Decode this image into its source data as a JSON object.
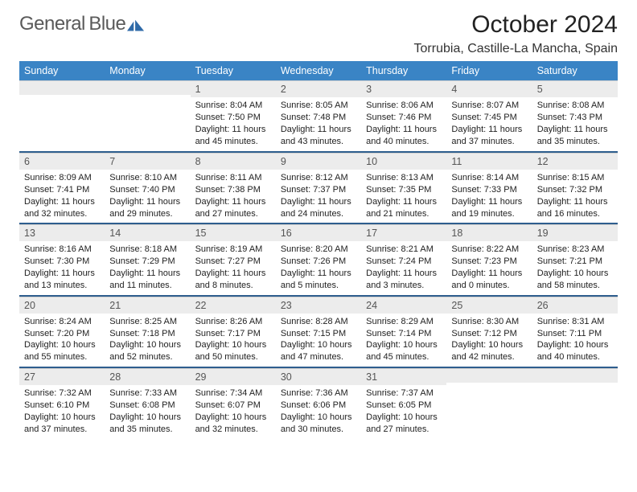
{
  "logo": {
    "text1": "General",
    "text2": "Blue"
  },
  "title": "October 2024",
  "location": "Torrubia, Castille-La Mancha, Spain",
  "headers": [
    "Sunday",
    "Monday",
    "Tuesday",
    "Wednesday",
    "Thursday",
    "Friday",
    "Saturday"
  ],
  "colors": {
    "header_bg": "#3a84c5",
    "header_fg": "#ffffff",
    "daynum_bg": "#ececec",
    "row_sep": "#2e5e8e",
    "logo_gray": "#6a6a6a",
    "logo_blue": "#3a7fc4"
  },
  "weeks": [
    [
      {
        "n": ""
      },
      {
        "n": ""
      },
      {
        "n": "1",
        "sr": "Sunrise: 8:04 AM",
        "ss": "Sunset: 7:50 PM",
        "dl": "Daylight: 11 hours and 45 minutes."
      },
      {
        "n": "2",
        "sr": "Sunrise: 8:05 AM",
        "ss": "Sunset: 7:48 PM",
        "dl": "Daylight: 11 hours and 43 minutes."
      },
      {
        "n": "3",
        "sr": "Sunrise: 8:06 AM",
        "ss": "Sunset: 7:46 PM",
        "dl": "Daylight: 11 hours and 40 minutes."
      },
      {
        "n": "4",
        "sr": "Sunrise: 8:07 AM",
        "ss": "Sunset: 7:45 PM",
        "dl": "Daylight: 11 hours and 37 minutes."
      },
      {
        "n": "5",
        "sr": "Sunrise: 8:08 AM",
        "ss": "Sunset: 7:43 PM",
        "dl": "Daylight: 11 hours and 35 minutes."
      }
    ],
    [
      {
        "n": "6",
        "sr": "Sunrise: 8:09 AM",
        "ss": "Sunset: 7:41 PM",
        "dl": "Daylight: 11 hours and 32 minutes."
      },
      {
        "n": "7",
        "sr": "Sunrise: 8:10 AM",
        "ss": "Sunset: 7:40 PM",
        "dl": "Daylight: 11 hours and 29 minutes."
      },
      {
        "n": "8",
        "sr": "Sunrise: 8:11 AM",
        "ss": "Sunset: 7:38 PM",
        "dl": "Daylight: 11 hours and 27 minutes."
      },
      {
        "n": "9",
        "sr": "Sunrise: 8:12 AM",
        "ss": "Sunset: 7:37 PM",
        "dl": "Daylight: 11 hours and 24 minutes."
      },
      {
        "n": "10",
        "sr": "Sunrise: 8:13 AM",
        "ss": "Sunset: 7:35 PM",
        "dl": "Daylight: 11 hours and 21 minutes."
      },
      {
        "n": "11",
        "sr": "Sunrise: 8:14 AM",
        "ss": "Sunset: 7:33 PM",
        "dl": "Daylight: 11 hours and 19 minutes."
      },
      {
        "n": "12",
        "sr": "Sunrise: 8:15 AM",
        "ss": "Sunset: 7:32 PM",
        "dl": "Daylight: 11 hours and 16 minutes."
      }
    ],
    [
      {
        "n": "13",
        "sr": "Sunrise: 8:16 AM",
        "ss": "Sunset: 7:30 PM",
        "dl": "Daylight: 11 hours and 13 minutes."
      },
      {
        "n": "14",
        "sr": "Sunrise: 8:18 AM",
        "ss": "Sunset: 7:29 PM",
        "dl": "Daylight: 11 hours and 11 minutes."
      },
      {
        "n": "15",
        "sr": "Sunrise: 8:19 AM",
        "ss": "Sunset: 7:27 PM",
        "dl": "Daylight: 11 hours and 8 minutes."
      },
      {
        "n": "16",
        "sr": "Sunrise: 8:20 AM",
        "ss": "Sunset: 7:26 PM",
        "dl": "Daylight: 11 hours and 5 minutes."
      },
      {
        "n": "17",
        "sr": "Sunrise: 8:21 AM",
        "ss": "Sunset: 7:24 PM",
        "dl": "Daylight: 11 hours and 3 minutes."
      },
      {
        "n": "18",
        "sr": "Sunrise: 8:22 AM",
        "ss": "Sunset: 7:23 PM",
        "dl": "Daylight: 11 hours and 0 minutes."
      },
      {
        "n": "19",
        "sr": "Sunrise: 8:23 AM",
        "ss": "Sunset: 7:21 PM",
        "dl": "Daylight: 10 hours and 58 minutes."
      }
    ],
    [
      {
        "n": "20",
        "sr": "Sunrise: 8:24 AM",
        "ss": "Sunset: 7:20 PM",
        "dl": "Daylight: 10 hours and 55 minutes."
      },
      {
        "n": "21",
        "sr": "Sunrise: 8:25 AM",
        "ss": "Sunset: 7:18 PM",
        "dl": "Daylight: 10 hours and 52 minutes."
      },
      {
        "n": "22",
        "sr": "Sunrise: 8:26 AM",
        "ss": "Sunset: 7:17 PM",
        "dl": "Daylight: 10 hours and 50 minutes."
      },
      {
        "n": "23",
        "sr": "Sunrise: 8:28 AM",
        "ss": "Sunset: 7:15 PM",
        "dl": "Daylight: 10 hours and 47 minutes."
      },
      {
        "n": "24",
        "sr": "Sunrise: 8:29 AM",
        "ss": "Sunset: 7:14 PM",
        "dl": "Daylight: 10 hours and 45 minutes."
      },
      {
        "n": "25",
        "sr": "Sunrise: 8:30 AM",
        "ss": "Sunset: 7:12 PM",
        "dl": "Daylight: 10 hours and 42 minutes."
      },
      {
        "n": "26",
        "sr": "Sunrise: 8:31 AM",
        "ss": "Sunset: 7:11 PM",
        "dl": "Daylight: 10 hours and 40 minutes."
      }
    ],
    [
      {
        "n": "27",
        "sr": "Sunrise: 7:32 AM",
        "ss": "Sunset: 6:10 PM",
        "dl": "Daylight: 10 hours and 37 minutes."
      },
      {
        "n": "28",
        "sr": "Sunrise: 7:33 AM",
        "ss": "Sunset: 6:08 PM",
        "dl": "Daylight: 10 hours and 35 minutes."
      },
      {
        "n": "29",
        "sr": "Sunrise: 7:34 AM",
        "ss": "Sunset: 6:07 PM",
        "dl": "Daylight: 10 hours and 32 minutes."
      },
      {
        "n": "30",
        "sr": "Sunrise: 7:36 AM",
        "ss": "Sunset: 6:06 PM",
        "dl": "Daylight: 10 hours and 30 minutes."
      },
      {
        "n": "31",
        "sr": "Sunrise: 7:37 AM",
        "ss": "Sunset: 6:05 PM",
        "dl": "Daylight: 10 hours and 27 minutes."
      },
      {
        "n": ""
      },
      {
        "n": ""
      }
    ]
  ]
}
